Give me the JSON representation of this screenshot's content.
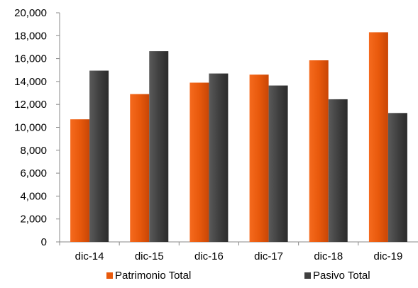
{
  "chart_data": {
    "type": "bar",
    "categories": [
      "dic-14",
      "dic-15",
      "dic-16",
      "dic-17",
      "dic-18",
      "dic-19"
    ],
    "series": [
      {
        "name": "Patrimonio Total",
        "color": "#e8590c",
        "values": [
          10700,
          12900,
          13900,
          14600,
          15850,
          18300
        ]
      },
      {
        "name": "Pasivo Total",
        "color": "#404040",
        "values": [
          14950,
          16650,
          14700,
          13650,
          12450,
          11250
        ]
      }
    ],
    "ylim": [
      0,
      20000
    ],
    "yticks": [
      "0",
      "2,000",
      "4,000",
      "6,000",
      "8,000",
      "10,000",
      "12,000",
      "14,000",
      "16,000",
      "18,000",
      "20,000"
    ],
    "ytick_values": [
      0,
      2000,
      4000,
      6000,
      8000,
      10000,
      12000,
      14000,
      16000,
      18000,
      20000
    ],
    "grid": false,
    "legend": "bottom"
  }
}
